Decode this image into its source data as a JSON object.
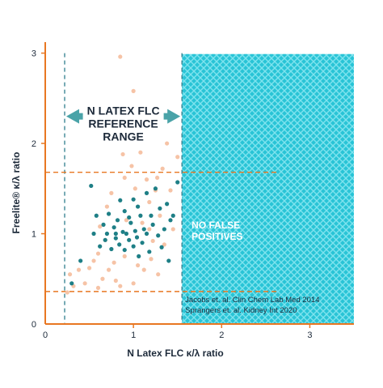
{
  "chart_data": {
    "type": "scatter",
    "xlabel": "N Latex FLC κ/λ ratio",
    "ylabel": "Freelite® κ/λ ratio",
    "xlim": [
      0,
      3.5
    ],
    "ylim": [
      0,
      3.05
    ],
    "x_ticks": [
      "0",
      "1",
      "2",
      "3"
    ],
    "y_ticks": [
      "0",
      "1",
      "2",
      "3"
    ],
    "grid": false,
    "reference_range": {
      "label_lines": [
        "N LATEX FLC",
        "REFERENCE",
        "RANGE"
      ],
      "x_low": 0.22,
      "x_high": 1.55
    },
    "freelite_range": {
      "y_low": 0.36,
      "y_high": 1.68,
      "x_end": 2.65
    },
    "no_false_positives": {
      "label_lines": [
        "NO FALSE",
        "POSITIVES"
      ],
      "x_from": 1.55,
      "color": "#29c4d6"
    },
    "citations": [
      "Jacobs et. al. Clin Chem Lab Med 2014",
      "Sprangers et. al. Kidney Int 2020"
    ],
    "colors": {
      "axis": "#e87722",
      "range_line": "#e87722",
      "reference_line": "#2e7d8c",
      "arrow": "#4aa3a8",
      "series_dark": "#1e7f86",
      "series_light": "#f6c3a6",
      "text": "#1d2a3a"
    },
    "series": [
      {
        "color": "#1e7f86",
        "points": [
          [
            0.3,
            0.45
          ],
          [
            0.4,
            0.7
          ],
          [
            0.52,
            1.53
          ],
          [
            0.55,
            1.0
          ],
          [
            0.58,
            1.2
          ],
          [
            0.62,
            0.86
          ],
          [
            0.66,
            1.1
          ],
          [
            0.68,
            0.93
          ],
          [
            0.7,
            1.0
          ],
          [
            0.72,
            1.22
          ],
          [
            0.75,
            0.83
          ],
          [
            0.78,
            1.07
          ],
          [
            0.8,
            0.95
          ],
          [
            0.82,
            1.15
          ],
          [
            0.84,
            0.88
          ],
          [
            0.85,
            1.37
          ],
          [
            0.88,
            1.02
          ],
          [
            0.9,
            0.82
          ],
          [
            0.9,
            1.25
          ],
          [
            0.92,
            1.0
          ],
          [
            0.95,
            0.93
          ],
          [
            0.97,
            1.12
          ],
          [
            1.0,
            1.38
          ],
          [
            1.0,
            0.86
          ],
          [
            1.02,
            1.03
          ],
          [
            1.04,
            0.96
          ],
          [
            1.05,
            1.3
          ],
          [
            1.06,
            0.75
          ],
          [
            1.08,
            1.2
          ],
          [
            1.1,
            0.9
          ],
          [
            1.12,
            1.05
          ],
          [
            1.15,
            1.45
          ],
          [
            1.18,
            0.8
          ],
          [
            1.2,
            1.2
          ],
          [
            1.22,
            1.1
          ],
          [
            1.25,
            1.5
          ],
          [
            1.28,
            0.98
          ],
          [
            1.3,
            1.28
          ],
          [
            1.32,
            0.85
          ],
          [
            1.35,
            1.05
          ],
          [
            1.38,
            1.33
          ],
          [
            1.4,
            0.7
          ],
          [
            1.42,
            1.15
          ],
          [
            1.45,
            1.2
          ],
          [
            1.5,
            1.57
          ],
          [
            0.8,
            1.0
          ],
          [
            0.95,
            1.18
          ],
          [
            1.15,
            1.0
          ]
        ]
      },
      {
        "color": "#f6c3a6",
        "points": [
          [
            0.25,
            0.35
          ],
          [
            0.28,
            0.55
          ],
          [
            0.32,
            0.42
          ],
          [
            0.38,
            0.6
          ],
          [
            0.45,
            0.45
          ],
          [
            0.5,
            0.62
          ],
          [
            0.55,
            0.7
          ],
          [
            0.6,
            0.78
          ],
          [
            0.62,
            1.08
          ],
          [
            0.65,
            0.5
          ],
          [
            0.7,
            1.3
          ],
          [
            0.72,
            0.6
          ],
          [
            0.75,
            1.45
          ],
          [
            0.78,
            0.68
          ],
          [
            0.8,
            0.48
          ],
          [
            0.85,
            2.96
          ],
          [
            0.88,
            1.88
          ],
          [
            0.9,
            1.62
          ],
          [
            0.92,
            1.15
          ],
          [
            0.95,
            2.1
          ],
          [
            0.98,
            1.75
          ],
          [
            1.0,
            2.58
          ],
          [
            1.02,
            1.5
          ],
          [
            1.05,
            0.65
          ],
          [
            1.08,
            1.9
          ],
          [
            1.1,
            1.12
          ],
          [
            1.12,
            0.6
          ],
          [
            1.15,
            1.6
          ],
          [
            1.18,
            1.35
          ],
          [
            1.2,
            0.72
          ],
          [
            1.22,
            0.92
          ],
          [
            1.25,
            1.48
          ],
          [
            1.28,
            0.55
          ],
          [
            1.3,
            1.2
          ],
          [
            1.33,
            1.72
          ],
          [
            1.35,
            0.88
          ],
          [
            1.38,
            2.0
          ],
          [
            1.42,
            1.48
          ],
          [
            1.45,
            1.05
          ],
          [
            1.5,
            1.85
          ],
          [
            0.6,
            0.4
          ],
          [
            0.85,
            0.42
          ],
          [
            1.0,
            0.45
          ],
          [
            0.68,
            0.93
          ],
          [
            0.9,
            0.75
          ],
          [
            1.18,
            1.05
          ],
          [
            1.27,
            1.62
          ]
        ]
      }
    ]
  }
}
